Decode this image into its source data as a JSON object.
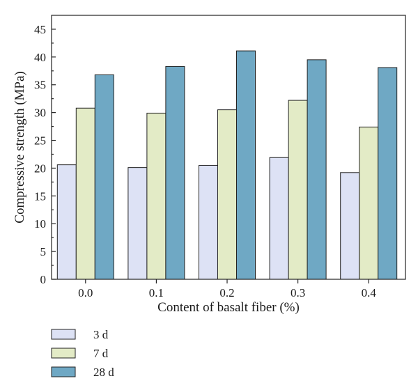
{
  "chart_data": {
    "type": "bar",
    "title": "",
    "xlabel": "Content of basalt fiber (%)",
    "ylabel": "Compressive strength (MPa)",
    "categories": [
      "0.0",
      "0.1",
      "0.2",
      "0.3",
      "0.4"
    ],
    "ylim": [
      0,
      47.5
    ],
    "yticks": [
      0,
      5,
      10,
      15,
      20,
      25,
      30,
      35,
      40,
      45
    ],
    "grid": false,
    "legend_position": "bottom-left",
    "series": [
      {
        "name": "3 d",
        "color": "#dde2f5",
        "values": [
          20.6,
          20.1,
          20.5,
          21.9,
          19.2
        ]
      },
      {
        "name": "7 d",
        "color": "#e3ebc6",
        "values": [
          30.8,
          29.9,
          30.5,
          32.2,
          27.4
        ]
      },
      {
        "name": "28 d",
        "color": "#6fa8c4",
        "values": [
          36.8,
          38.3,
          41.1,
          39.5,
          38.1
        ]
      }
    ]
  }
}
